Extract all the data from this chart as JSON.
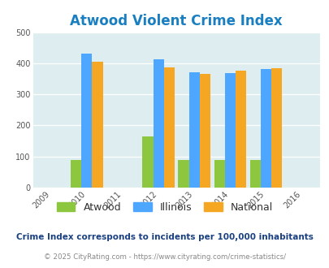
{
  "title": "Atwood Violent Crime Index",
  "title_color": "#1a7fc1",
  "years": [
    2010,
    2012,
    2013,
    2014,
    2015
  ],
  "atwood": [
    88,
    165,
    88,
    88,
    88
  ],
  "illinois": [
    432,
    414,
    372,
    368,
    382
  ],
  "national": [
    404,
    387,
    367,
    376,
    383
  ],
  "atwood_color": "#8dc63f",
  "illinois_color": "#4da6ff",
  "national_color": "#f5a623",
  "bg_color": "#deeef0",
  "ylim": [
    0,
    500
  ],
  "yticks": [
    0,
    100,
    200,
    300,
    400,
    500
  ],
  "xlim": [
    2008.5,
    2016.5
  ],
  "xticks": [
    2009,
    2010,
    2011,
    2012,
    2013,
    2014,
    2015,
    2016
  ],
  "bar_width": 0.3,
  "legend_labels": [
    "Atwood",
    "Illinois",
    "National"
  ],
  "footnote1": "Crime Index corresponds to incidents per 100,000 inhabitants",
  "footnote2": "© 2025 CityRating.com - https://www.cityrating.com/crime-statistics/",
  "footnote1_color": "#1a4080",
  "footnote2_color": "#888888"
}
